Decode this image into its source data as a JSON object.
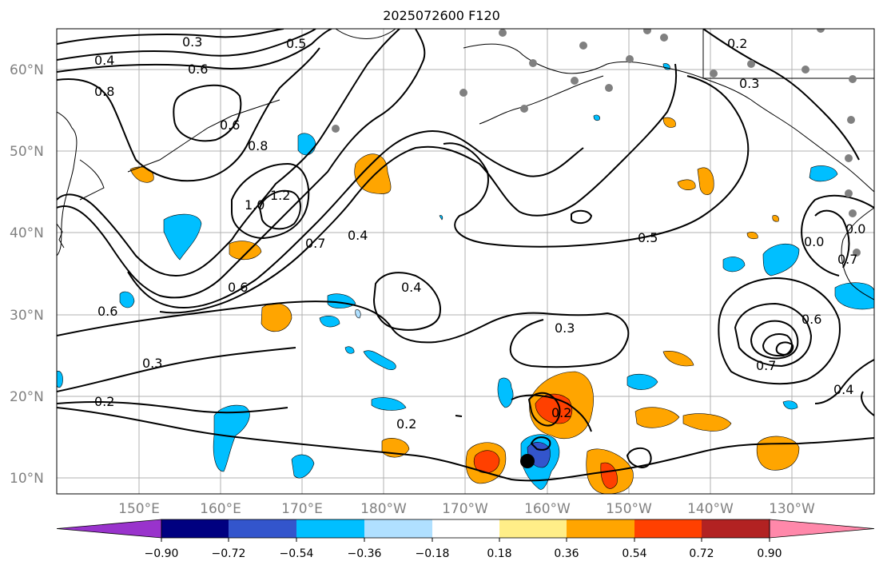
{
  "title": "2025072600 F120",
  "lat_labels": [
    "60°N",
    "50°N",
    "40°N",
    "30°N",
    "20°N",
    "10°N"
  ],
  "lon_labels": [
    "150°E",
    "160°E",
    "170°E",
    "180°W",
    "170°W",
    "160°W",
    "150°W",
    "140°W",
    "130°W"
  ],
  "colorbar": {
    "colors": [
      "#9933cc",
      "#000080",
      "#3355cc",
      "#00bfff",
      "#b0e0ff",
      "#ffffff",
      "#ffee88",
      "#ffa500",
      "#ff4000",
      "#b22222",
      "#ff88aa"
    ],
    "tick_labels": [
      "−0.90",
      "−0.72",
      "−0.54",
      "−0.36",
      "−0.18",
      "0.18",
      "0.36",
      "0.54",
      "0.72",
      "0.90"
    ]
  },
  "contour_labels": [
    "0.3",
    "0.4",
    "0.5",
    "0.6",
    "0.8",
    "0.6",
    "0.8",
    "1.0",
    "1.2",
    "0.7",
    "0.4",
    "0.6",
    "0.6",
    "0.3",
    "0.2",
    "0.4",
    "0.3",
    "0.2",
    "0.2",
    "0.5",
    "0.2",
    "0.3",
    "0.6",
    "0.7",
    "0.4",
    "0.0",
    "0.7",
    "0.0"
  ],
  "colors": {
    "land_points": "#808080",
    "grid": "#b0b0b0",
    "station": "#000000"
  }
}
